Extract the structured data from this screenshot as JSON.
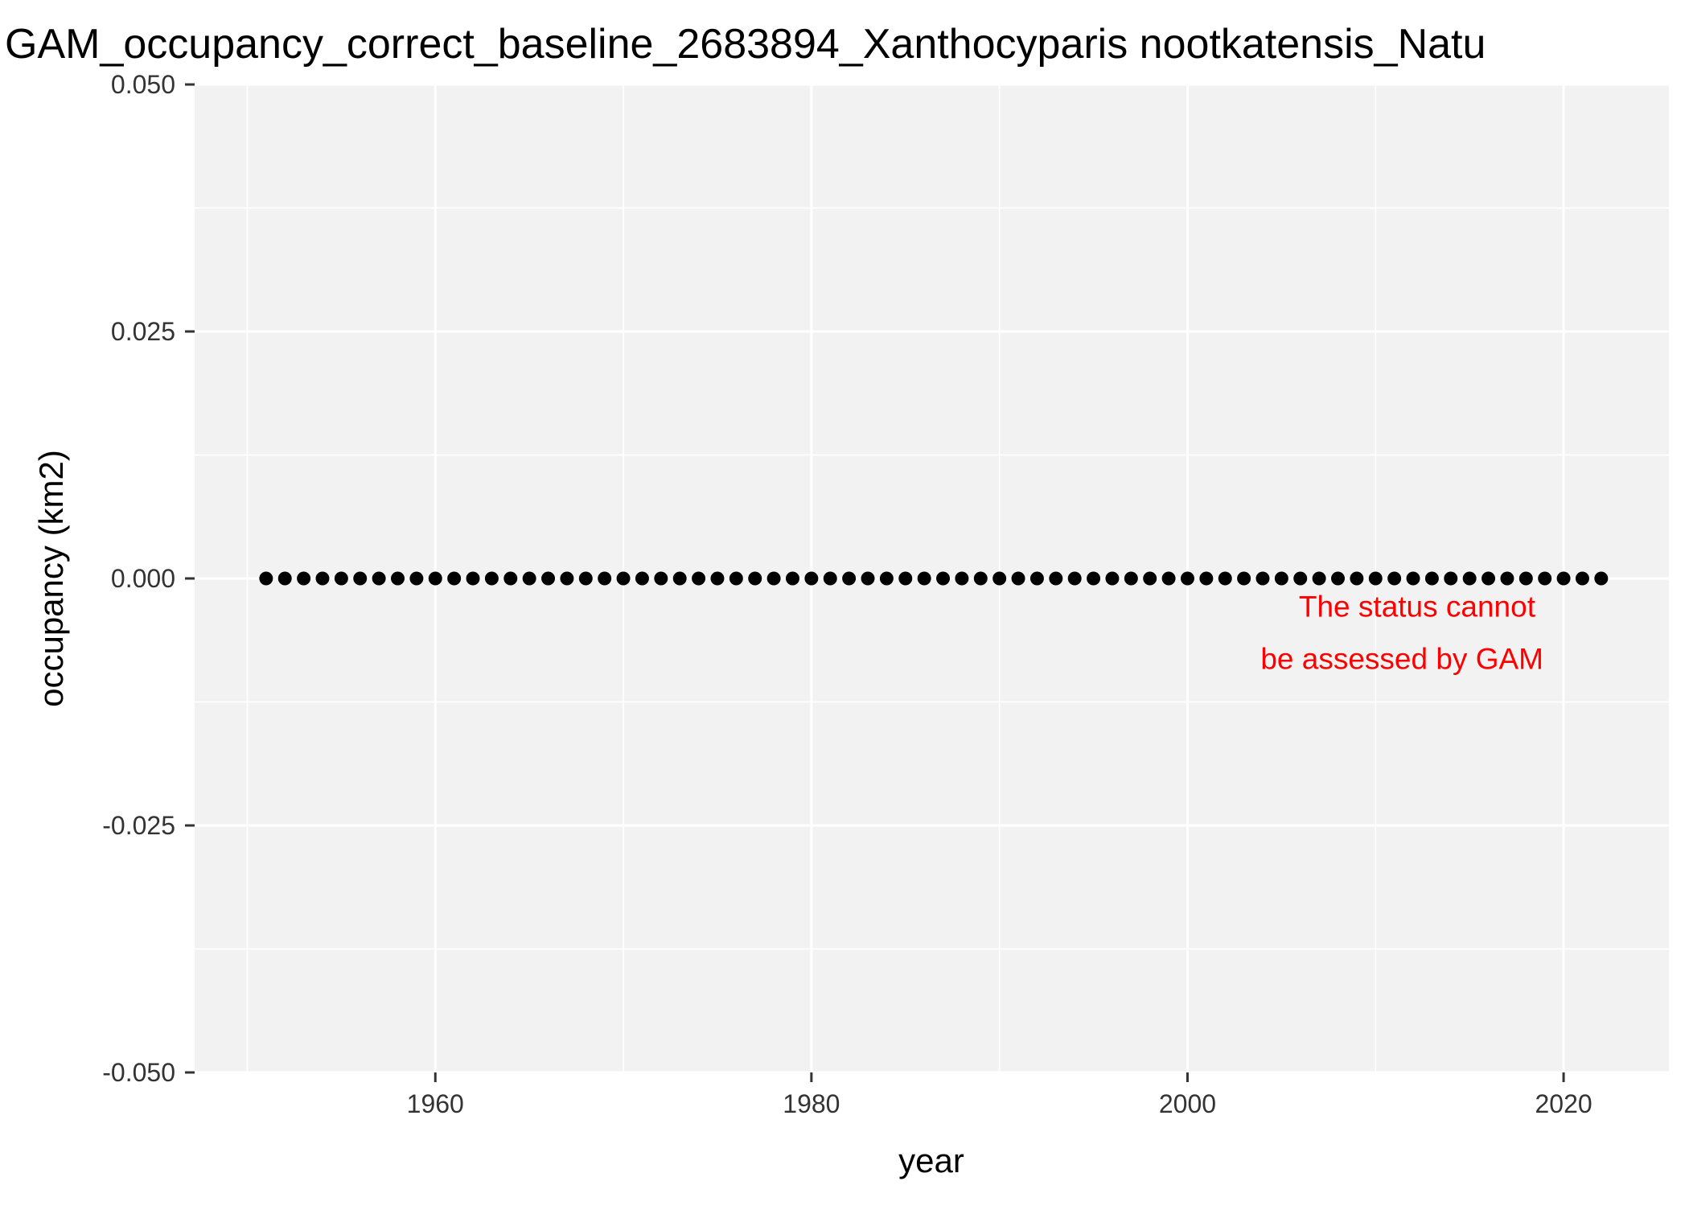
{
  "chart_data": {
    "type": "scatter",
    "title": "GAM_occupancy_correct_baseline_2683894_Xanthocyparis nootkatensis_Natu",
    "xlabel": "year",
    "ylabel": "occupancy (km2)",
    "xlim": [
      1947.2,
      2025.6
    ],
    "ylim": [
      -0.05,
      0.05
    ],
    "x_ticks": [
      1960,
      1980,
      2000,
      2020
    ],
    "x_tick_labels": [
      "1960",
      "1980",
      "2000",
      "2020"
    ],
    "y_ticks": [
      -0.05,
      -0.025,
      0.0,
      0.025,
      0.05
    ],
    "y_tick_labels": [
      "-0.050",
      "-0.025",
      "0.000",
      "0.025",
      "0.050"
    ],
    "grid": true,
    "legend": "none",
    "panel_background": "#f2f2f2",
    "grid_color": "#ffffff",
    "point_color": "#000000",
    "annotation": {
      "lines": [
        "The status cannot",
        "be assessed by GAM"
      ],
      "color": "#ff0000",
      "x": 2018.5,
      "y": -0.0012
    },
    "series": [
      {
        "x_start": 1951,
        "x_end": 2022,
        "y_constant": 0.0
      }
    ]
  }
}
